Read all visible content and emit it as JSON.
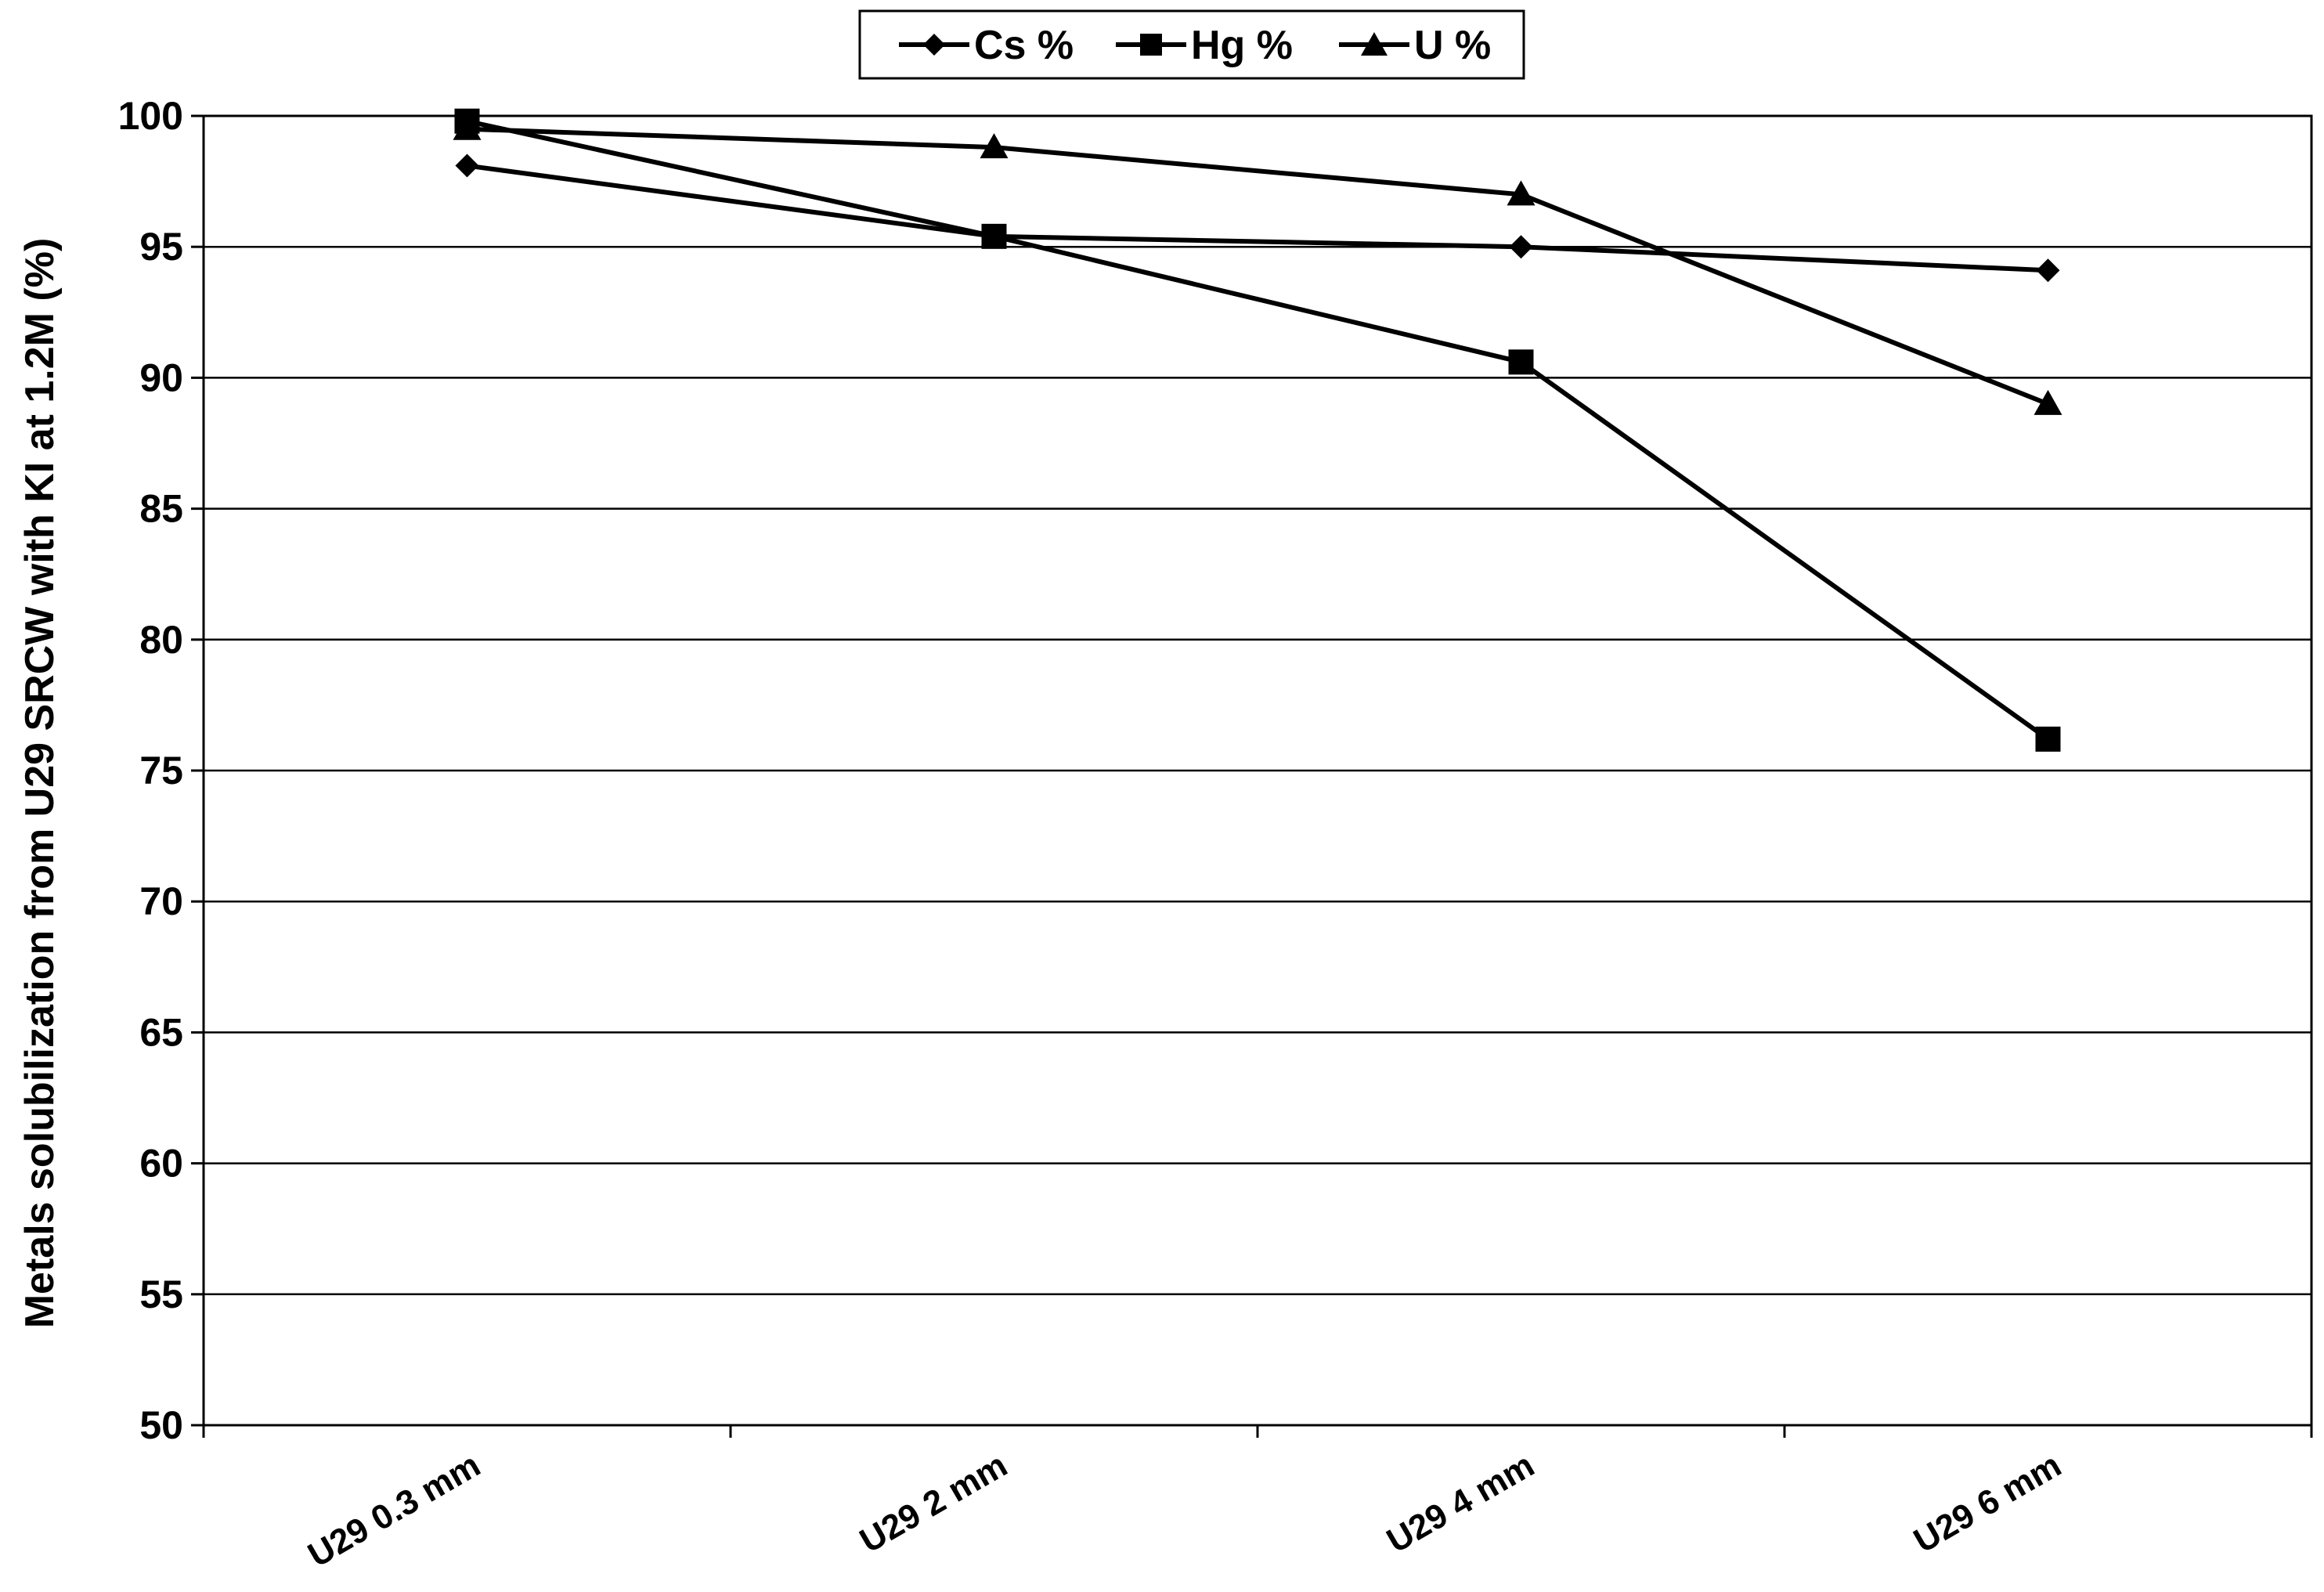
{
  "chart_data": {
    "type": "line",
    "title": "",
    "xlabel": "",
    "ylabel": "Metals solubilization from U29 SRCW with KI at 1.2M (%)",
    "categories": [
      "U29 0.3 mm",
      "U29 2 mm",
      "U29 4 mm",
      "U29 6 mm"
    ],
    "ylim": [
      50,
      100
    ],
    "yticks": [
      50,
      55,
      60,
      65,
      70,
      75,
      80,
      85,
      90,
      95,
      100
    ],
    "grid": "horizontal",
    "legend_position": "top-center",
    "series": [
      {
        "name": "Cs %",
        "marker": "diamond",
        "values": [
          98.1,
          95.4,
          95.0,
          94.1
        ]
      },
      {
        "name": "Hg %",
        "marker": "square",
        "values": [
          99.8,
          95.4,
          90.6,
          76.2
        ]
      },
      {
        "name": "U %",
        "marker": "triangle",
        "values": [
          99.5,
          98.8,
          97.0,
          89.0
        ]
      }
    ],
    "colors": {
      "line": "#000000",
      "grid": "#000000",
      "background": "#ffffff"
    }
  }
}
